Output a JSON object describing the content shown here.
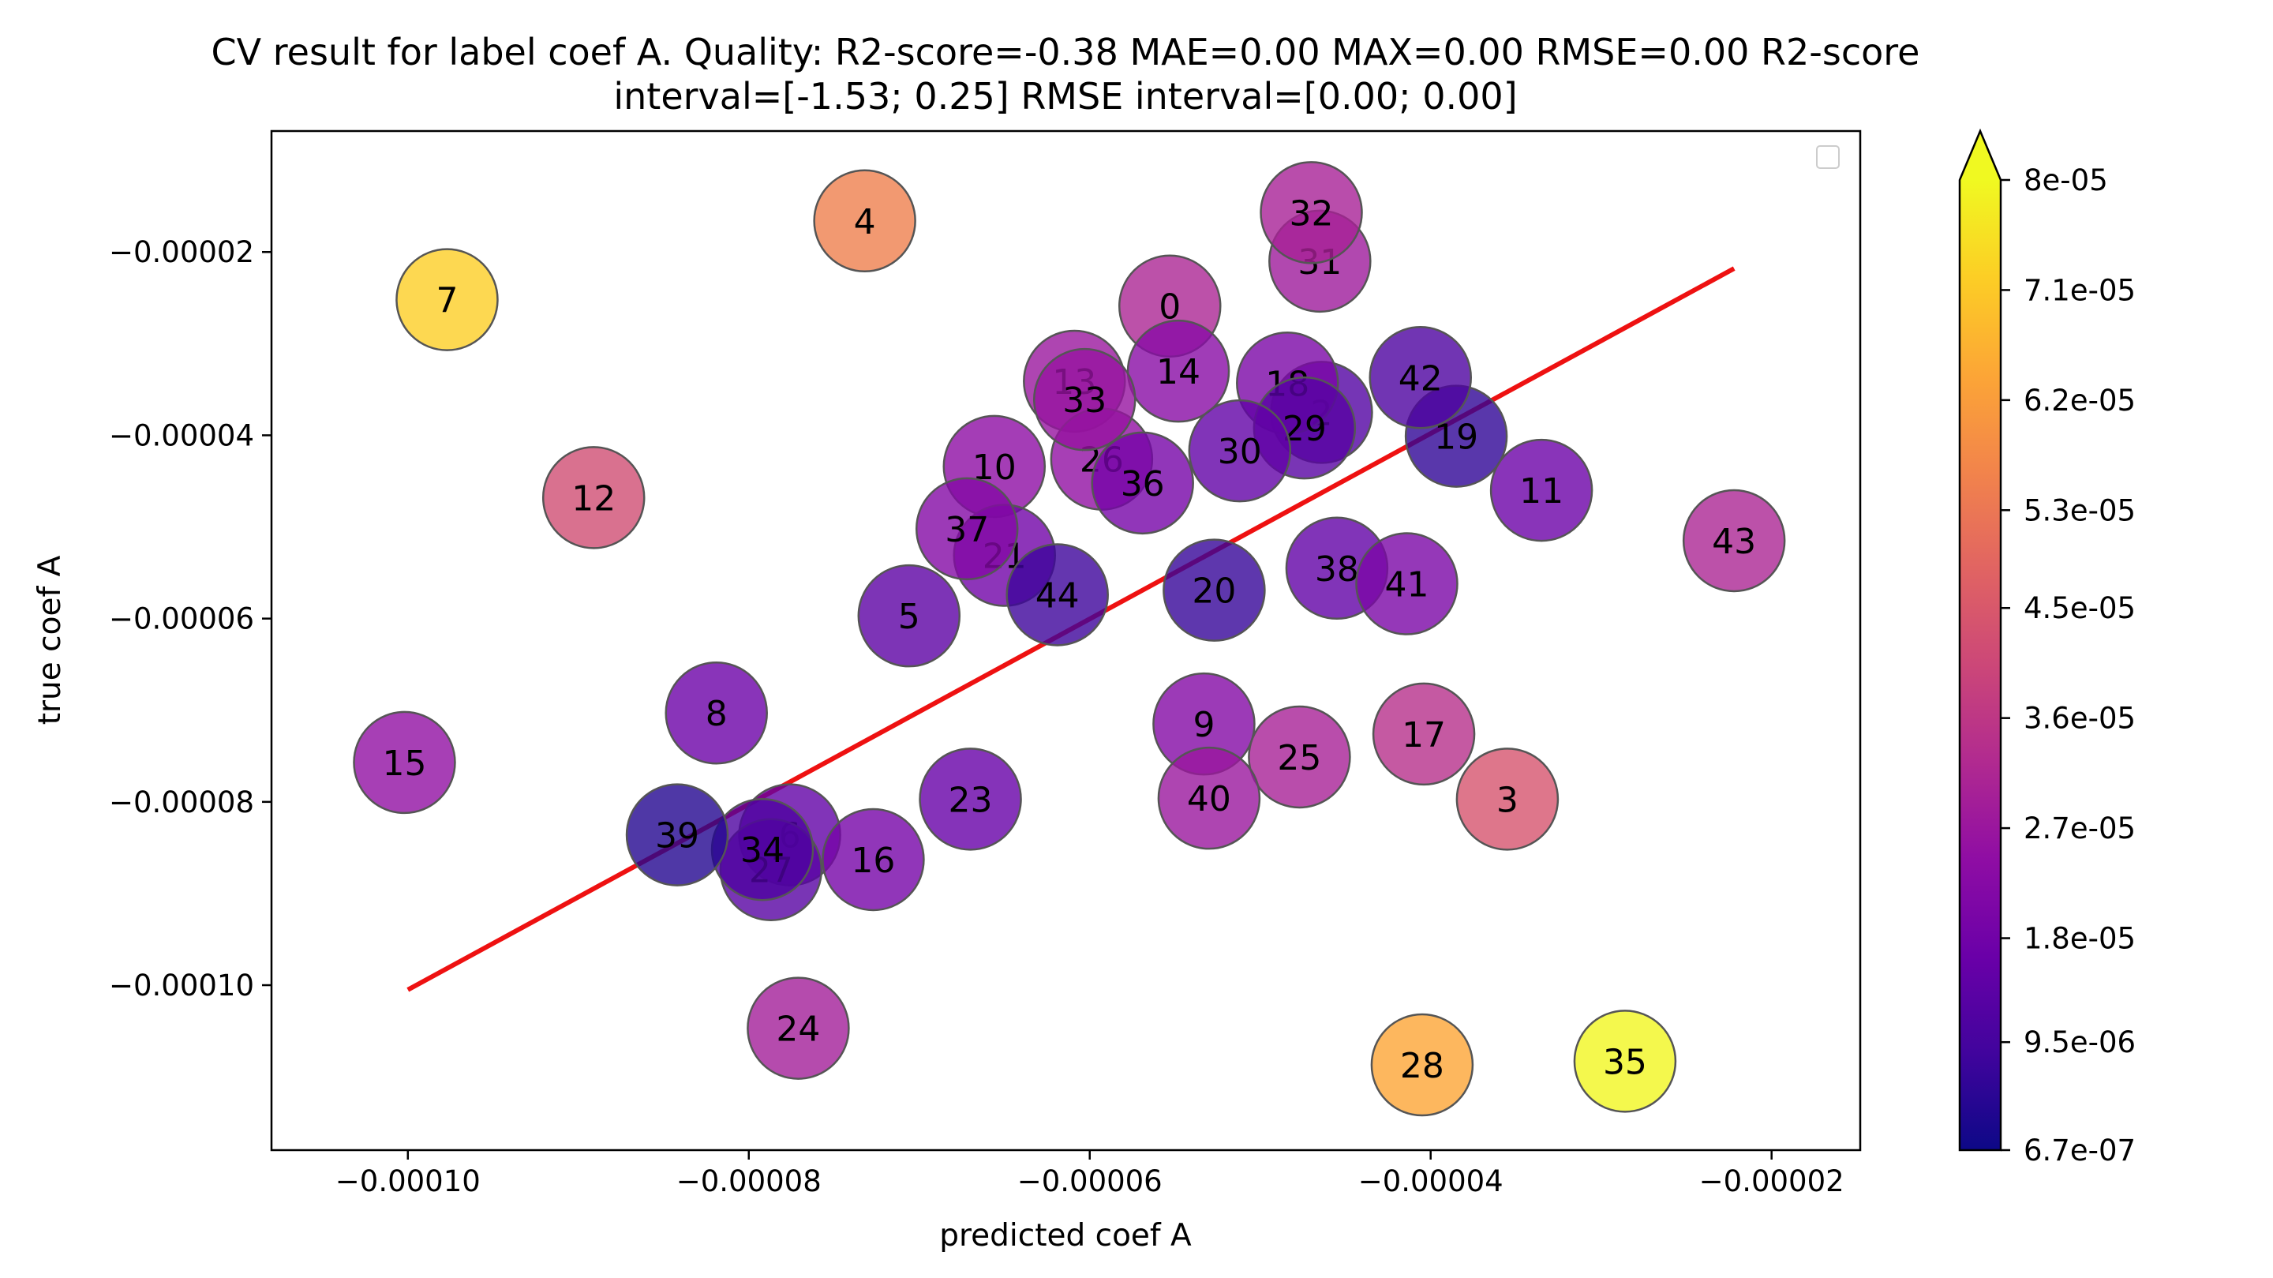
{
  "chart_data": {
    "type": "scatter",
    "title_line1": "CV result for label coef A. Quality: R2-score=-0.38 MAE=0.00 MAX=0.00 RMSE=0.00 R2-score",
    "title_line2": "interval=[-1.53; 0.25] RMSE interval=[0.00; 0.00]",
    "xlabel": "predicted coef A",
    "ylabel": "true coef A",
    "xlim": [
      -0.000108,
      -1.48e-05
    ],
    "ylim": [
      -0.000118,
      -6.8e-06
    ],
    "xticks": [
      -0.0001,
      -8e-05,
      -6e-05,
      -4e-05,
      -2e-05
    ],
    "xtick_labels": [
      "−0.00010",
      "−0.00008",
      "−0.00006",
      "−0.00004",
      "−0.00002"
    ],
    "yticks": [
      -2e-05,
      -4e-05,
      -6e-05,
      -8e-05,
      -0.0001
    ],
    "ytick_labels": [
      "−0.00002",
      "−0.00004",
      "−0.00006",
      "−0.00008",
      "−0.00010"
    ],
    "colormap": "plasma",
    "colorbar": {
      "min": 6.7e-07,
      "max": 8e-05,
      "extend": "max",
      "ticks": [
        8e-05,
        7.1e-05,
        6.2e-05,
        5.3e-05,
        4.5e-05,
        3.6e-05,
        2.7e-05,
        1.8e-05,
        9.5e-06,
        6.7e-07
      ],
      "tick_labels": [
        "8e-05",
        "7.1e-05",
        "6.2e-05",
        "5.3e-05",
        "4.5e-05",
        "3.6e-05",
        "2.7e-05",
        "1.8e-05",
        "9.5e-06",
        "6.7e-07"
      ]
    },
    "fit_line": {
      "x": [
        -0.0001,
        -2.22e-05
      ],
      "y": [
        -0.0001005,
        -2.18e-05
      ],
      "color": "#ee1111"
    },
    "points": [
      {
        "label": "0",
        "x": -5.53e-05,
        "y": -2.59e-05,
        "c": 3.1e-05
      },
      {
        "label": "2",
        "x": -4.64e-05,
        "y": -3.75e-05,
        "c": 1.2e-05
      },
      {
        "label": "3",
        "x": -3.55e-05,
        "y": -7.97e-05,
        "c": 4.4e-05
      },
      {
        "label": "4",
        "x": -7.32e-05,
        "y": -1.66e-05,
        "c": 5.5e-05
      },
      {
        "label": "5",
        "x": -7.06e-05,
        "y": -5.97e-05,
        "c": 1.4e-05
      },
      {
        "label": "6",
        "x": -7.76e-05,
        "y": -8.36e-05,
        "c": 1.5e-05
      },
      {
        "label": "7",
        "x": -9.77e-05,
        "y": -2.52e-05,
        "c": 7.2e-05
      },
      {
        "label": "8",
        "x": -8.19e-05,
        "y": -7.03e-05,
        "c": 1.7e-05
      },
      {
        "label": "9",
        "x": -5.33e-05,
        "y": -7.15e-05,
        "c": 2.2e-05
      },
      {
        "label": "10",
        "x": -6.56e-05,
        "y": -4.34e-05,
        "c": 2.4e-05
      },
      {
        "label": "11",
        "x": -3.35e-05,
        "y": -4.6e-05,
        "c": 1.7e-05
      },
      {
        "label": "12",
        "x": -8.91e-05,
        "y": -4.68e-05,
        "c": 4.2e-05
      },
      {
        "label": "13",
        "x": -6.09e-05,
        "y": -3.41e-05,
        "c": 2.7e-05
      },
      {
        "label": "14",
        "x": -5.48e-05,
        "y": -3.3e-05,
        "c": 2.3e-05
      },
      {
        "label": "15",
        "x": -0.0001002,
        "y": -7.57e-05,
        "c": 2.5e-05
      },
      {
        "label": "16",
        "x": -7.27e-05,
        "y": -8.63e-05,
        "c": 1.9e-05
      },
      {
        "label": "17",
        "x": -4.04e-05,
        "y": -7.26e-05,
        "c": 3.4e-05
      },
      {
        "label": "18",
        "x": -4.84e-05,
        "y": -3.43e-05,
        "c": 2e-05
      },
      {
        "label": "19",
        "x": -3.85e-05,
        "y": -4.01e-05,
        "c": 6e-06
      },
      {
        "label": "20",
        "x": -5.27e-05,
        "y": -5.69e-05,
        "c": 7e-06
      },
      {
        "label": "21",
        "x": -6.5e-05,
        "y": -5.31e-05,
        "c": 1.8e-05
      },
      {
        "label": "23",
        "x": -6.7e-05,
        "y": -7.97e-05,
        "c": 1.6e-05
      },
      {
        "label": "24",
        "x": -7.71e-05,
        "y": -0.0001047,
        "c": 2.9e-05
      },
      {
        "label": "25",
        "x": -4.77e-05,
        "y": -7.51e-05,
        "c": 3e-05
      },
      {
        "label": "26",
        "x": -5.93e-05,
        "y": -4.26e-05,
        "c": 2.5e-05
      },
      {
        "label": "27",
        "x": -7.87e-05,
        "y": -8.74e-05,
        "c": 1.3e-05
      },
      {
        "label": "28",
        "x": -4.05e-05,
        "y": -0.0001087,
        "c": 6.4e-05
      },
      {
        "label": "29",
        "x": -4.74e-05,
        "y": -3.92e-05,
        "c": 1.3e-05
      },
      {
        "label": "30",
        "x": -5.12e-05,
        "y": -4.17e-05,
        "c": 1.5e-05
      },
      {
        "label": "31",
        "x": -4.65e-05,
        "y": -2.1e-05,
        "c": 2.8e-05
      },
      {
        "label": "32",
        "x": -4.7e-05,
        "y": -1.57e-05,
        "c": 3e-05
      },
      {
        "label": "33",
        "x": -6.03e-05,
        "y": -3.61e-05,
        "c": 2.6e-05
      },
      {
        "label": "34",
        "x": -7.92e-05,
        "y": -8.52e-05,
        "c": 1.1e-05
      },
      {
        "label": "35",
        "x": -2.86e-05,
        "y": -0.0001083,
        "c": 7.95e-05
      },
      {
        "label": "36",
        "x": -5.69e-05,
        "y": -4.52e-05,
        "c": 1.9e-05
      },
      {
        "label": "37",
        "x": -6.72e-05,
        "y": -5.02e-05,
        "c": 2.2e-05
      },
      {
        "label": "38",
        "x": -4.55e-05,
        "y": -5.45e-05,
        "c": 1.5e-05
      },
      {
        "label": "39",
        "x": -8.42e-05,
        "y": -8.36e-05,
        "c": 4e-06
      },
      {
        "label": "40",
        "x": -5.3e-05,
        "y": -7.96e-05,
        "c": 2.7e-05
      },
      {
        "label": "41",
        "x": -4.14e-05,
        "y": -5.62e-05,
        "c": 2e-05
      },
      {
        "label": "42",
        "x": -4.06e-05,
        "y": -3.37e-05,
        "c": 1.1e-05
      },
      {
        "label": "43",
        "x": -2.22e-05,
        "y": -5.15e-05,
        "c": 3.1e-05
      },
      {
        "label": "44",
        "x": -6.19e-05,
        "y": -5.74e-05,
        "c": 8e-06
      }
    ]
  }
}
